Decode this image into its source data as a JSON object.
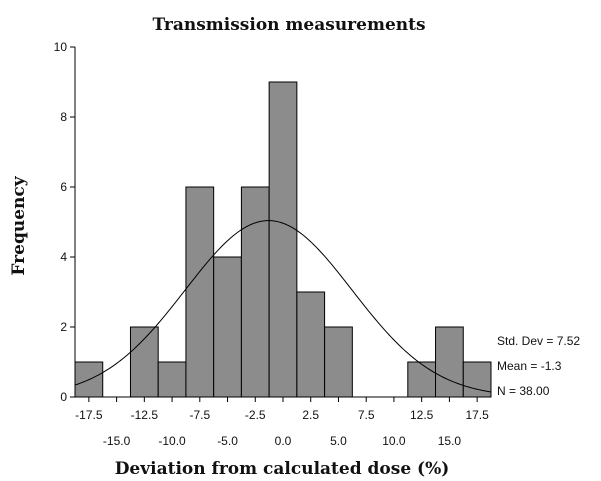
{
  "chart_data": {
    "type": "bar",
    "subtype": "histogram-with-normal-curve",
    "title": "Transmission measurements",
    "xlabel": "Deviation from calculated dose (%)",
    "ylabel": "Frequency",
    "bin_width": 2.5,
    "bin_centers": [
      -17.5,
      -15.0,
      -12.5,
      -10.0,
      -7.5,
      -5.0,
      -2.5,
      0.0,
      2.5,
      5.0,
      7.5,
      10.0,
      12.5,
      15.0,
      17.5
    ],
    "values": [
      1,
      0,
      2,
      1,
      6,
      4,
      6,
      9,
      3,
      2,
      0,
      0,
      1,
      2,
      1
    ],
    "xlim": [
      -18.75,
      18.75
    ],
    "ylim": [
      0,
      10
    ],
    "yticks": [
      0,
      2,
      4,
      6,
      8,
      10
    ],
    "xtick_labels_upper": [
      "-17.5",
      "-12.5",
      "-7.5",
      "-2.5",
      "2.5",
      "7.5",
      "12.5",
      "17.5"
    ],
    "xtick_labels_lower": [
      "-15.0",
      "-10.0",
      "-5.0",
      "0.0",
      "5.0",
      "10.0",
      "15.0"
    ],
    "normal_curve": {
      "mean": -1.3,
      "std": 7.52,
      "n": 38
    },
    "stats": {
      "std_dev": "Std. Dev = 7.52",
      "mean": "Mean = -1.3",
      "n": "N = 38.00"
    },
    "colors": {
      "bar_fill": "#8c8c8c",
      "bar_stroke": "#000000",
      "curve": "#000000",
      "axis": "#000000"
    },
    "grid": false
  }
}
